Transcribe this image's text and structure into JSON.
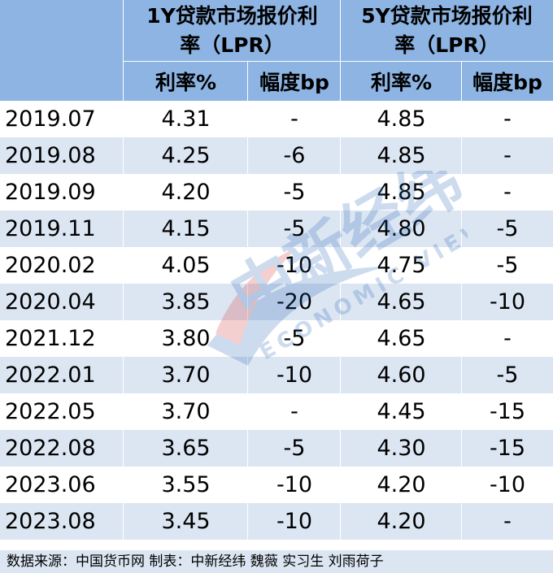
{
  "header": {
    "group1_line1": "1Y贷款市场报价利",
    "group1_line2": "率（LPR）",
    "group2_line1": "5Y贷款市场报价利",
    "group2_line2": "率（LPR）",
    "rate_label_1": "利率%",
    "bp_label_1": "幅度bp",
    "rate_label_2": "利率%",
    "bp_label_2": "幅度bp"
  },
  "rows": [
    {
      "date": "2019.07",
      "r1": "4.31",
      "b1": "-",
      "r2": "4.85",
      "b2": "-"
    },
    {
      "date": "2019.08",
      "r1": "4.25",
      "b1": "-6",
      "r2": "4.85",
      "b2": "-"
    },
    {
      "date": "2019.09",
      "r1": "4.20",
      "b1": "-5",
      "r2": "4.85",
      "b2": "-"
    },
    {
      "date": "2019.11",
      "r1": "4.15",
      "b1": "-5",
      "r2": "4.80",
      "b2": "-5"
    },
    {
      "date": "2020.02",
      "r1": "4.05",
      "b1": "-10",
      "r2": "4.75",
      "b2": "-5"
    },
    {
      "date": "2020.04",
      "r1": "3.85",
      "b1": "-20",
      "r2": "4.65",
      "b2": "-10"
    },
    {
      "date": "2021.12",
      "r1": "3.80",
      "b1": "-5",
      "r2": "4.65",
      "b2": "-"
    },
    {
      "date": "2022.01",
      "r1": "3.70",
      "b1": "-10",
      "r2": "4.60",
      "b2": "-5"
    },
    {
      "date": "2022.05",
      "r1": "3.70",
      "b1": "-",
      "r2": "4.45",
      "b2": "-15"
    },
    {
      "date": "2022.08",
      "r1": "3.65",
      "b1": "-5",
      "r2": "4.30",
      "b2": "-15"
    },
    {
      "date": "2023.06",
      "r1": "3.55",
      "b1": "-10",
      "r2": "4.20",
      "b2": "-10"
    },
    {
      "date": "2023.08",
      "r1": "3.45",
      "b1": "-10",
      "r2": "4.20",
      "b2": "-"
    }
  ],
  "footer": {
    "source": "数据来源：中国货币网 制表：中新经纬 魏薇 实习生 刘雨荷子"
  },
  "watermark": {
    "brand_cn": "中新经纬",
    "brand_en": "ECONOMIC VIEW"
  },
  "colors": {
    "header_bg": "#8db4e2",
    "stripe_bg": "#dce6f2",
    "row_bg": "#ffffff"
  }
}
